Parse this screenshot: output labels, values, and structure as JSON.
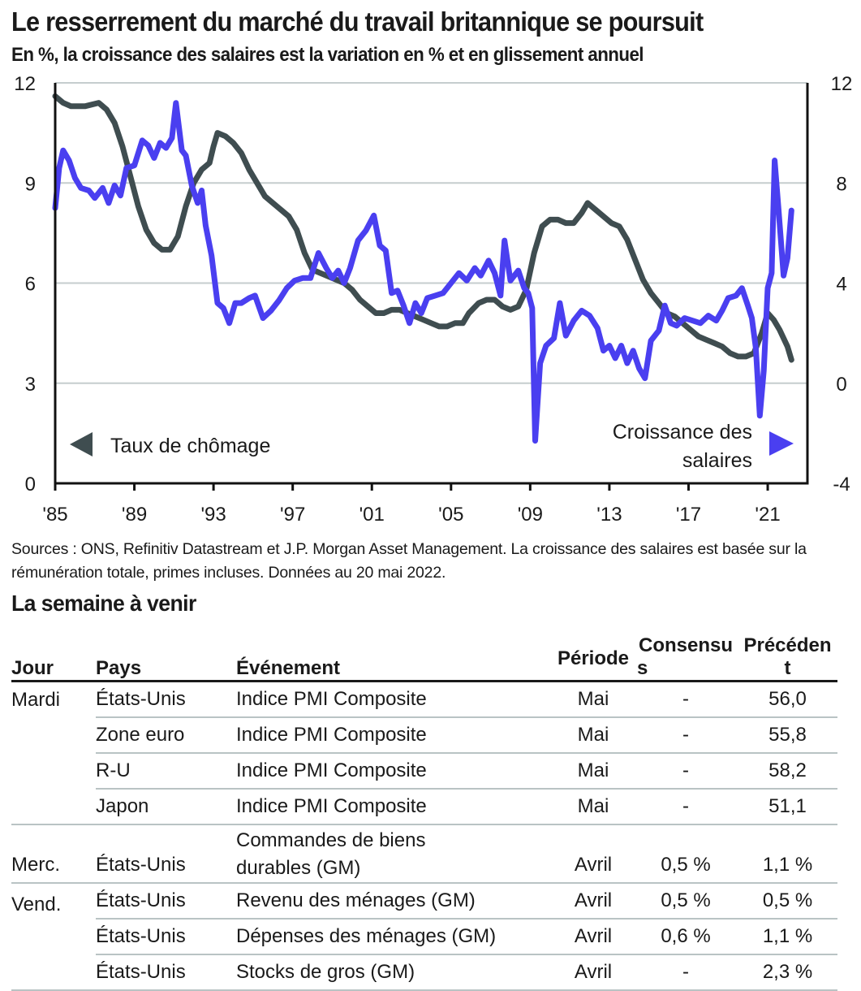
{
  "header": {
    "title": "Le resserrement du marché du travail britannique se poursuit",
    "subtitle": "En %, la croissance des salaires est la variation en % et en glissement annuel"
  },
  "chart_data": {
    "type": "line",
    "title": "Le resserrement du marché du travail britannique se poursuit",
    "subtitle": "En %, la croissance des salaires est la variation en % et en glissement annuel",
    "xlabel": "",
    "ylabel_left": "",
    "ylabel_right": "",
    "x_ticks": [
      "'85",
      "'89",
      "'93",
      "'97",
      "'01",
      "'05",
      "'09",
      "'13",
      "'17",
      "'21"
    ],
    "x_tick_years": [
      1985,
      1989,
      1993,
      1997,
      2001,
      2005,
      2009,
      2013,
      2017,
      2021
    ],
    "xlim": [
      1985,
      2023
    ],
    "y_left": {
      "ticks": [
        "0",
        "3",
        "6",
        "9",
        "12"
      ],
      "tick_values": [
        0,
        3,
        6,
        9,
        12
      ],
      "ylim": [
        0,
        12
      ]
    },
    "y_right": {
      "ticks": [
        "-4",
        "0",
        "4",
        "8",
        "12"
      ],
      "tick_values": [
        -4,
        0,
        4,
        8,
        12
      ],
      "ylim": [
        -4,
        12
      ]
    },
    "grid": true,
    "series": [
      {
        "name": "Taux de chômage",
        "axis": "left",
        "color": "#3f4d50",
        "legend_position": "bottom-left",
        "legend_marker": "left-triangle",
        "points": [
          [
            1985.0,
            11.6
          ],
          [
            1985.4,
            11.4
          ],
          [
            1985.8,
            11.3
          ],
          [
            1986.5,
            11.3
          ],
          [
            1987.2,
            11.4
          ],
          [
            1987.6,
            11.2
          ],
          [
            1988.0,
            10.8
          ],
          [
            1988.4,
            10.1
          ],
          [
            1988.8,
            9.2
          ],
          [
            1989.2,
            8.3
          ],
          [
            1989.6,
            7.6
          ],
          [
            1990.0,
            7.2
          ],
          [
            1990.4,
            7.0
          ],
          [
            1990.8,
            7.0
          ],
          [
            1991.2,
            7.4
          ],
          [
            1991.6,
            8.3
          ],
          [
            1992.0,
            9.0
          ],
          [
            1992.4,
            9.4
          ],
          [
            1992.8,
            9.6
          ],
          [
            1993.0,
            10.1
          ],
          [
            1993.2,
            10.5
          ],
          [
            1993.6,
            10.4
          ],
          [
            1994.0,
            10.2
          ],
          [
            1994.4,
            9.9
          ],
          [
            1994.8,
            9.4
          ],
          [
            1995.2,
            9.0
          ],
          [
            1995.6,
            8.6
          ],
          [
            1996.0,
            8.4
          ],
          [
            1996.4,
            8.2
          ],
          [
            1996.8,
            8.0
          ],
          [
            1997.2,
            7.6
          ],
          [
            1997.6,
            6.9
          ],
          [
            1998.0,
            6.4
          ],
          [
            1998.4,
            6.3
          ],
          [
            1998.8,
            6.2
          ],
          [
            1999.2,
            6.1
          ],
          [
            1999.6,
            6.0
          ],
          [
            2000.0,
            5.8
          ],
          [
            2000.4,
            5.5
          ],
          [
            2000.8,
            5.3
          ],
          [
            2001.2,
            5.1
          ],
          [
            2001.6,
            5.1
          ],
          [
            2002.0,
            5.2
          ],
          [
            2002.4,
            5.2
          ],
          [
            2002.8,
            5.1
          ],
          [
            2003.2,
            5.0
          ],
          [
            2003.6,
            4.9
          ],
          [
            2004.0,
            4.8
          ],
          [
            2004.4,
            4.7
          ],
          [
            2004.8,
            4.7
          ],
          [
            2005.2,
            4.8
          ],
          [
            2005.6,
            4.8
          ],
          [
            2005.9,
            5.1
          ],
          [
            2006.4,
            5.4
          ],
          [
            2006.8,
            5.5
          ],
          [
            2007.2,
            5.5
          ],
          [
            2007.6,
            5.3
          ],
          [
            2008.0,
            5.2
          ],
          [
            2008.4,
            5.3
          ],
          [
            2008.8,
            5.8
          ],
          [
            2009.2,
            6.9
          ],
          [
            2009.6,
            7.7
          ],
          [
            2010.0,
            7.9
          ],
          [
            2010.4,
            7.9
          ],
          [
            2010.8,
            7.8
          ],
          [
            2011.2,
            7.8
          ],
          [
            2011.6,
            8.1
          ],
          [
            2011.9,
            8.4
          ],
          [
            2012.3,
            8.2
          ],
          [
            2012.7,
            8.0
          ],
          [
            2013.1,
            7.8
          ],
          [
            2013.5,
            7.7
          ],
          [
            2013.9,
            7.3
          ],
          [
            2014.3,
            6.7
          ],
          [
            2014.7,
            6.1
          ],
          [
            2015.1,
            5.7
          ],
          [
            2015.5,
            5.4
          ],
          [
            2015.9,
            5.1
          ],
          [
            2016.3,
            5.0
          ],
          [
            2016.7,
            4.8
          ],
          [
            2017.1,
            4.6
          ],
          [
            2017.5,
            4.4
          ],
          [
            2017.9,
            4.3
          ],
          [
            2018.3,
            4.2
          ],
          [
            2018.7,
            4.1
          ],
          [
            2019.1,
            3.9
          ],
          [
            2019.5,
            3.8
          ],
          [
            2019.9,
            3.8
          ],
          [
            2020.3,
            3.9
          ],
          [
            2020.7,
            4.5
          ],
          [
            2021.0,
            5.1
          ],
          [
            2021.3,
            4.9
          ],
          [
            2021.6,
            4.6
          ],
          [
            2022.0,
            4.1
          ],
          [
            2022.2,
            3.7
          ]
        ]
      },
      {
        "name": "Croissance des salaires",
        "axis": "right",
        "color": "#4a3ff0",
        "legend_position": "bottom-right",
        "legend_marker": "right-triangle",
        "points": [
          [
            1985.0,
            7.0
          ],
          [
            1985.2,
            8.6
          ],
          [
            1985.4,
            9.3
          ],
          [
            1985.7,
            8.9
          ],
          [
            1986.0,
            8.2
          ],
          [
            1986.3,
            7.8
          ],
          [
            1986.7,
            7.7
          ],
          [
            1987.0,
            7.4
          ],
          [
            1987.4,
            7.8
          ],
          [
            1987.7,
            7.2
          ],
          [
            1988.0,
            7.9
          ],
          [
            1988.3,
            7.5
          ],
          [
            1988.6,
            8.6
          ],
          [
            1989.0,
            8.7
          ],
          [
            1989.4,
            9.7
          ],
          [
            1989.7,
            9.5
          ],
          [
            1990.0,
            9.0
          ],
          [
            1990.3,
            9.6
          ],
          [
            1990.6,
            9.4
          ],
          [
            1990.9,
            9.8
          ],
          [
            1991.1,
            11.2
          ],
          [
            1991.4,
            9.3
          ],
          [
            1991.6,
            9.1
          ],
          [
            1991.9,
            7.9
          ],
          [
            1992.2,
            7.2
          ],
          [
            1992.4,
            7.7
          ],
          [
            1992.6,
            6.3
          ],
          [
            1992.9,
            5.1
          ],
          [
            1993.2,
            3.2
          ],
          [
            1993.5,
            3.0
          ],
          [
            1993.8,
            2.4
          ],
          [
            1994.1,
            3.2
          ],
          [
            1994.4,
            3.2
          ],
          [
            1994.8,
            3.4
          ],
          [
            1995.1,
            3.5
          ],
          [
            1995.5,
            2.6
          ],
          [
            1995.9,
            2.9
          ],
          [
            1996.3,
            3.3
          ],
          [
            1996.7,
            3.8
          ],
          [
            1997.1,
            4.1
          ],
          [
            1997.5,
            4.2
          ],
          [
            1997.9,
            4.2
          ],
          [
            1998.3,
            5.2
          ],
          [
            1998.7,
            4.6
          ],
          [
            1999.0,
            4.2
          ],
          [
            1999.3,
            4.5
          ],
          [
            1999.6,
            4.0
          ],
          [
            1999.9,
            4.6
          ],
          [
            2000.3,
            5.7
          ],
          [
            2000.7,
            6.1
          ],
          [
            2001.1,
            6.7
          ],
          [
            2001.4,
            5.5
          ],
          [
            2001.7,
            5.3
          ],
          [
            2002.0,
            3.6
          ],
          [
            2002.3,
            3.7
          ],
          [
            2002.6,
            3.1
          ],
          [
            2002.9,
            2.4
          ],
          [
            2003.2,
            3.2
          ],
          [
            2003.5,
            2.8
          ],
          [
            2003.8,
            3.4
          ],
          [
            2004.2,
            3.5
          ],
          [
            2004.6,
            3.6
          ],
          [
            2005.0,
            4.0
          ],
          [
            2005.4,
            4.4
          ],
          [
            2005.8,
            4.1
          ],
          [
            2006.2,
            4.6
          ],
          [
            2006.5,
            4.3
          ],
          [
            2006.9,
            4.9
          ],
          [
            2007.2,
            4.4
          ],
          [
            2007.5,
            3.5
          ],
          [
            2007.7,
            5.7
          ],
          [
            2008.0,
            4.1
          ],
          [
            2008.4,
            4.5
          ],
          [
            2008.7,
            3.8
          ],
          [
            2008.9,
            3.6
          ],
          [
            2009.1,
            3.0
          ],
          [
            2009.25,
            -2.3
          ],
          [
            2009.5,
            0.8
          ],
          [
            2009.8,
            1.5
          ],
          [
            2010.2,
            1.8
          ],
          [
            2010.5,
            3.2
          ],
          [
            2010.8,
            1.9
          ],
          [
            2011.2,
            2.5
          ],
          [
            2011.6,
            2.9
          ],
          [
            2012.0,
            2.7
          ],
          [
            2012.4,
            2.2
          ],
          [
            2012.7,
            1.3
          ],
          [
            2013.0,
            1.5
          ],
          [
            2013.3,
            1.0
          ],
          [
            2013.6,
            1.5
          ],
          [
            2013.9,
            0.8
          ],
          [
            2014.2,
            1.3
          ],
          [
            2014.5,
            0.6
          ],
          [
            2014.8,
            0.2
          ],
          [
            2015.1,
            1.7
          ],
          [
            2015.5,
            2.1
          ],
          [
            2015.8,
            3.1
          ],
          [
            2016.1,
            2.4
          ],
          [
            2016.4,
            2.3
          ],
          [
            2016.8,
            2.6
          ],
          [
            2017.2,
            2.5
          ],
          [
            2017.6,
            2.4
          ],
          [
            2018.0,
            2.7
          ],
          [
            2018.4,
            2.5
          ],
          [
            2018.7,
            2.9
          ],
          [
            2019.0,
            3.4
          ],
          [
            2019.4,
            3.5
          ],
          [
            2019.7,
            3.8
          ],
          [
            2020.0,
            3.1
          ],
          [
            2020.2,
            2.6
          ],
          [
            2020.4,
            1.4
          ],
          [
            2020.6,
            -1.3
          ],
          [
            2020.8,
            0.5
          ],
          [
            2021.0,
            3.8
          ],
          [
            2021.2,
            4.4
          ],
          [
            2021.35,
            8.9
          ],
          [
            2021.55,
            6.9
          ],
          [
            2021.8,
            4.3
          ],
          [
            2022.0,
            5.0
          ],
          [
            2022.2,
            6.9
          ]
        ]
      }
    ],
    "legend": [
      {
        "label_lines": [
          "Taux de chômage"
        ],
        "marker": "left-triangle",
        "color": "#3f4d50"
      },
      {
        "label_lines": [
          "Croissance des",
          "salaires"
        ],
        "marker": "right-triangle",
        "color": "#4a3ff0"
      }
    ]
  },
  "sources": {
    "text": "Sources : ONS, Refinitiv Datastream et J.P. Morgan Asset Management. La croissance des salaires est basée sur la rémunération totale, primes incluses. Données au 20 mai 2022."
  },
  "week_ahead": {
    "title": "La semaine à venir",
    "columns": {
      "day": "Jour",
      "country": "Pays",
      "event": "Événement",
      "period": "Période",
      "consensus_line1": "Consensu",
      "consensus_line2": "s",
      "previous_line1": "Précéden",
      "previous_line2": "t"
    },
    "rows": [
      {
        "day": "Mardi",
        "country": "États-Unis",
        "event": "Indice PMI Composite",
        "event_line2": "",
        "period": "Mai",
        "consensus": "-",
        "previous": "56,0"
      },
      {
        "day": "",
        "country": "Zone euro",
        "event": "Indice PMI Composite",
        "event_line2": "",
        "period": "Mai",
        "consensus": "-",
        "previous": "55,8"
      },
      {
        "day": "",
        "country": "R-U",
        "event": "Indice PMI Composite",
        "event_line2": "",
        "period": "Mai",
        "consensus": "-",
        "previous": "58,2"
      },
      {
        "day": "",
        "country": "Japon",
        "event": "Indice PMI Composite",
        "event_line2": "",
        "period": "Mai",
        "consensus": "-",
        "previous": "51,1"
      },
      {
        "day": "Merc.",
        "country": "États-Unis",
        "event": "Commandes de biens",
        "event_line2": "durables (GM)",
        "period": "Avril",
        "consensus": "0,5 %",
        "previous": "1,1 %"
      },
      {
        "day": "Vend.",
        "country": "États-Unis",
        "event": "Revenu des ménages (GM)",
        "event_line2": "",
        "period": "Avril",
        "consensus": "0,5 %",
        "previous": "0,5 %"
      },
      {
        "day": "",
        "country": "États-Unis",
        "event": "Dépenses des ménages (GM)",
        "event_line2": "",
        "period": "Avril",
        "consensus": "0,6 %",
        "previous": "1,1 %"
      },
      {
        "day": "",
        "country": "États-Unis",
        "event": "Stocks de gros (GM)",
        "event_line2": "",
        "period": "Avril",
        "consensus": "-",
        "previous": "2,3 %"
      }
    ]
  }
}
